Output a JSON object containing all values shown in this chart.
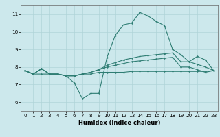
{
  "x": [
    0,
    1,
    2,
    3,
    4,
    5,
    6,
    7,
    8,
    9,
    10,
    11,
    12,
    13,
    14,
    15,
    16,
    17,
    18,
    19,
    20,
    21,
    22,
    23
  ],
  "line1": [
    7.8,
    7.6,
    7.9,
    7.6,
    7.6,
    7.5,
    7.1,
    6.2,
    6.5,
    6.5,
    8.55,
    9.8,
    10.4,
    10.5,
    11.1,
    10.9,
    10.6,
    10.35,
    9.0,
    8.7,
    8.3,
    8.6,
    8.4,
    7.8
  ],
  "line2": [
    7.8,
    7.6,
    7.9,
    7.6,
    7.6,
    7.5,
    7.5,
    7.6,
    7.7,
    7.85,
    8.1,
    8.25,
    8.4,
    8.5,
    8.6,
    8.65,
    8.7,
    8.75,
    8.8,
    8.3,
    8.3,
    8.15,
    8.0,
    7.8
  ],
  "line3": [
    7.8,
    7.6,
    7.9,
    7.6,
    7.6,
    7.5,
    7.5,
    7.6,
    7.7,
    7.85,
    8.0,
    8.1,
    8.2,
    8.3,
    8.35,
    8.4,
    8.45,
    8.5,
    8.55,
    8.0,
    8.0,
    7.85,
    7.7,
    7.8
  ],
  "line4": [
    7.8,
    7.6,
    7.6,
    7.6,
    7.6,
    7.5,
    7.5,
    7.6,
    7.6,
    7.7,
    7.7,
    7.7,
    7.7,
    7.75,
    7.75,
    7.75,
    7.75,
    7.75,
    7.75,
    7.75,
    7.75,
    7.75,
    7.75,
    7.8
  ],
  "line_color": "#2e7d73",
  "bg_color": "#cce8ec",
  "grid_color": "#b0d4d8",
  "xlabel": "Humidex (Indice chaleur)",
  "xlim": [
    -0.5,
    23.5
  ],
  "ylim": [
    5.5,
    11.5
  ],
  "yticks": [
    6,
    7,
    8,
    9,
    10,
    11
  ],
  "xticks": [
    0,
    1,
    2,
    3,
    4,
    5,
    6,
    7,
    8,
    9,
    10,
    11,
    12,
    13,
    14,
    15,
    16,
    17,
    18,
    19,
    20,
    21,
    22,
    23
  ],
  "xlabel_fontsize": 6.0,
  "tick_fontsize": 5.2
}
